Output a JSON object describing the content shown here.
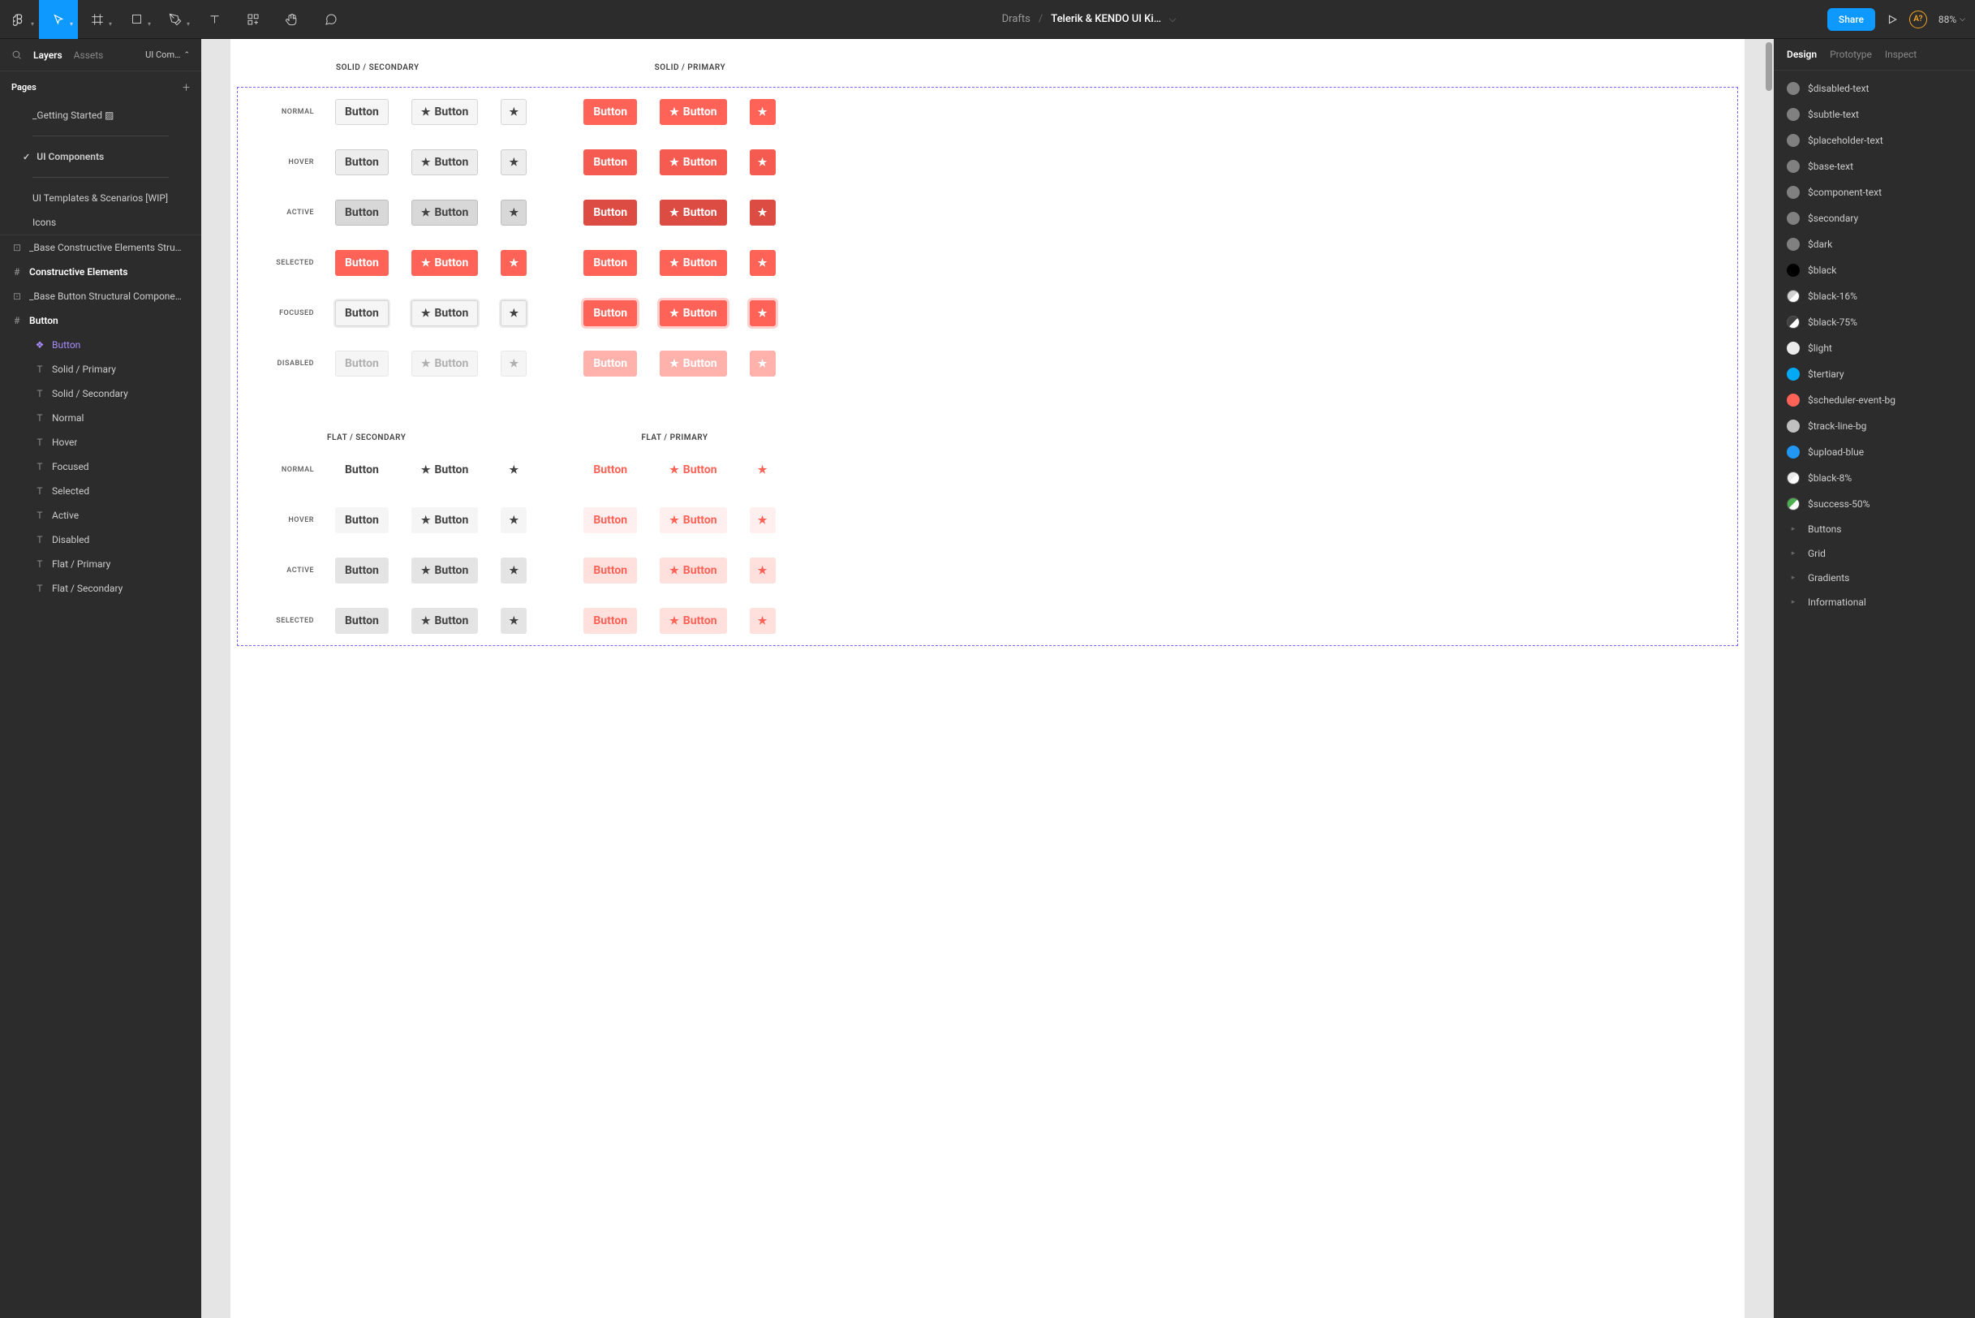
{
  "toolbar": {
    "crumb": "Drafts",
    "title": "Telerik & KENDO UI Ki…",
    "share": "Share",
    "avatar": "A?",
    "zoom": "88%"
  },
  "left": {
    "tabs": {
      "layers": "Layers",
      "assets": "Assets",
      "page": "UI Com…"
    },
    "pages_hdr": "Pages",
    "pages": {
      "getting_started": "_Getting Started ▨",
      "ui_components": "UI Components",
      "templates": "UI Templates & Scenarios [WIP]",
      "icons": "Icons"
    },
    "layers": {
      "base_constructive": "_Base Constructive Elements Stru…",
      "constructive": "Constructive Elements",
      "base_button": "_Base Button Structural Compone…",
      "button_frame": "Button",
      "button_comp": "Button",
      "solid_primary": "Solid / Primary",
      "solid_secondary": "Solid / Secondary",
      "normal": "Normal",
      "hover": "Hover",
      "focused": "Focused",
      "selected": "Selected",
      "active": "Active",
      "disabled": "Disabled",
      "flat_primary": "Flat / Primary",
      "flat_secondary": "Flat / Secondary"
    }
  },
  "canvas": {
    "headers": {
      "solid_secondary": "SOLID / SECONDARY",
      "solid_primary": "SOLID / PRIMARY",
      "flat_secondary": "FLAT / SECONDARY",
      "flat_primary": "FLAT / PRIMARY"
    },
    "states": {
      "normal": "NORMAL",
      "hover": "HOVER",
      "active": "ACTIVE",
      "selected": "SELECTED",
      "focused": "FOCUSED",
      "disabled": "DISABLED"
    },
    "btn_label": "Button"
  },
  "right": {
    "tabs": {
      "design": "Design",
      "prototype": "Prototype",
      "inspect": "Inspect"
    },
    "styles": [
      {
        "name": "$disabled-text",
        "color": "#808080"
      },
      {
        "name": "$subtle-text",
        "color": "#808080"
      },
      {
        "name": "$placeholder-text",
        "color": "#808080"
      },
      {
        "name": "$base-text",
        "color": "#808080"
      },
      {
        "name": "$component-text",
        "color": "#808080"
      },
      {
        "name": "$secondary",
        "color": "#808080"
      },
      {
        "name": "$dark",
        "color": "#808080"
      },
      {
        "name": "$black",
        "color": "#000000"
      },
      {
        "name": "$black-16%",
        "color": "#d0d0d0",
        "half": true
      },
      {
        "name": "$black-75%",
        "color": "#404040",
        "half": true
      },
      {
        "name": "$light",
        "color": "#ebebeb"
      },
      {
        "name": "$tertiary",
        "color": "#03a9f4"
      },
      {
        "name": "$scheduler-event-bg",
        "color": "#ff6358"
      },
      {
        "name": "$track-line-bg",
        "color": "#c0c0c0"
      },
      {
        "name": "$upload-blue",
        "color": "#2196f3"
      },
      {
        "name": "$black-8%",
        "color": "#ebebeb",
        "half": true
      },
      {
        "name": "$success-50%",
        "color": "#4caf50",
        "half": true
      }
    ],
    "groups": [
      "Buttons",
      "Grid",
      "Gradients",
      "Informational"
    ]
  }
}
